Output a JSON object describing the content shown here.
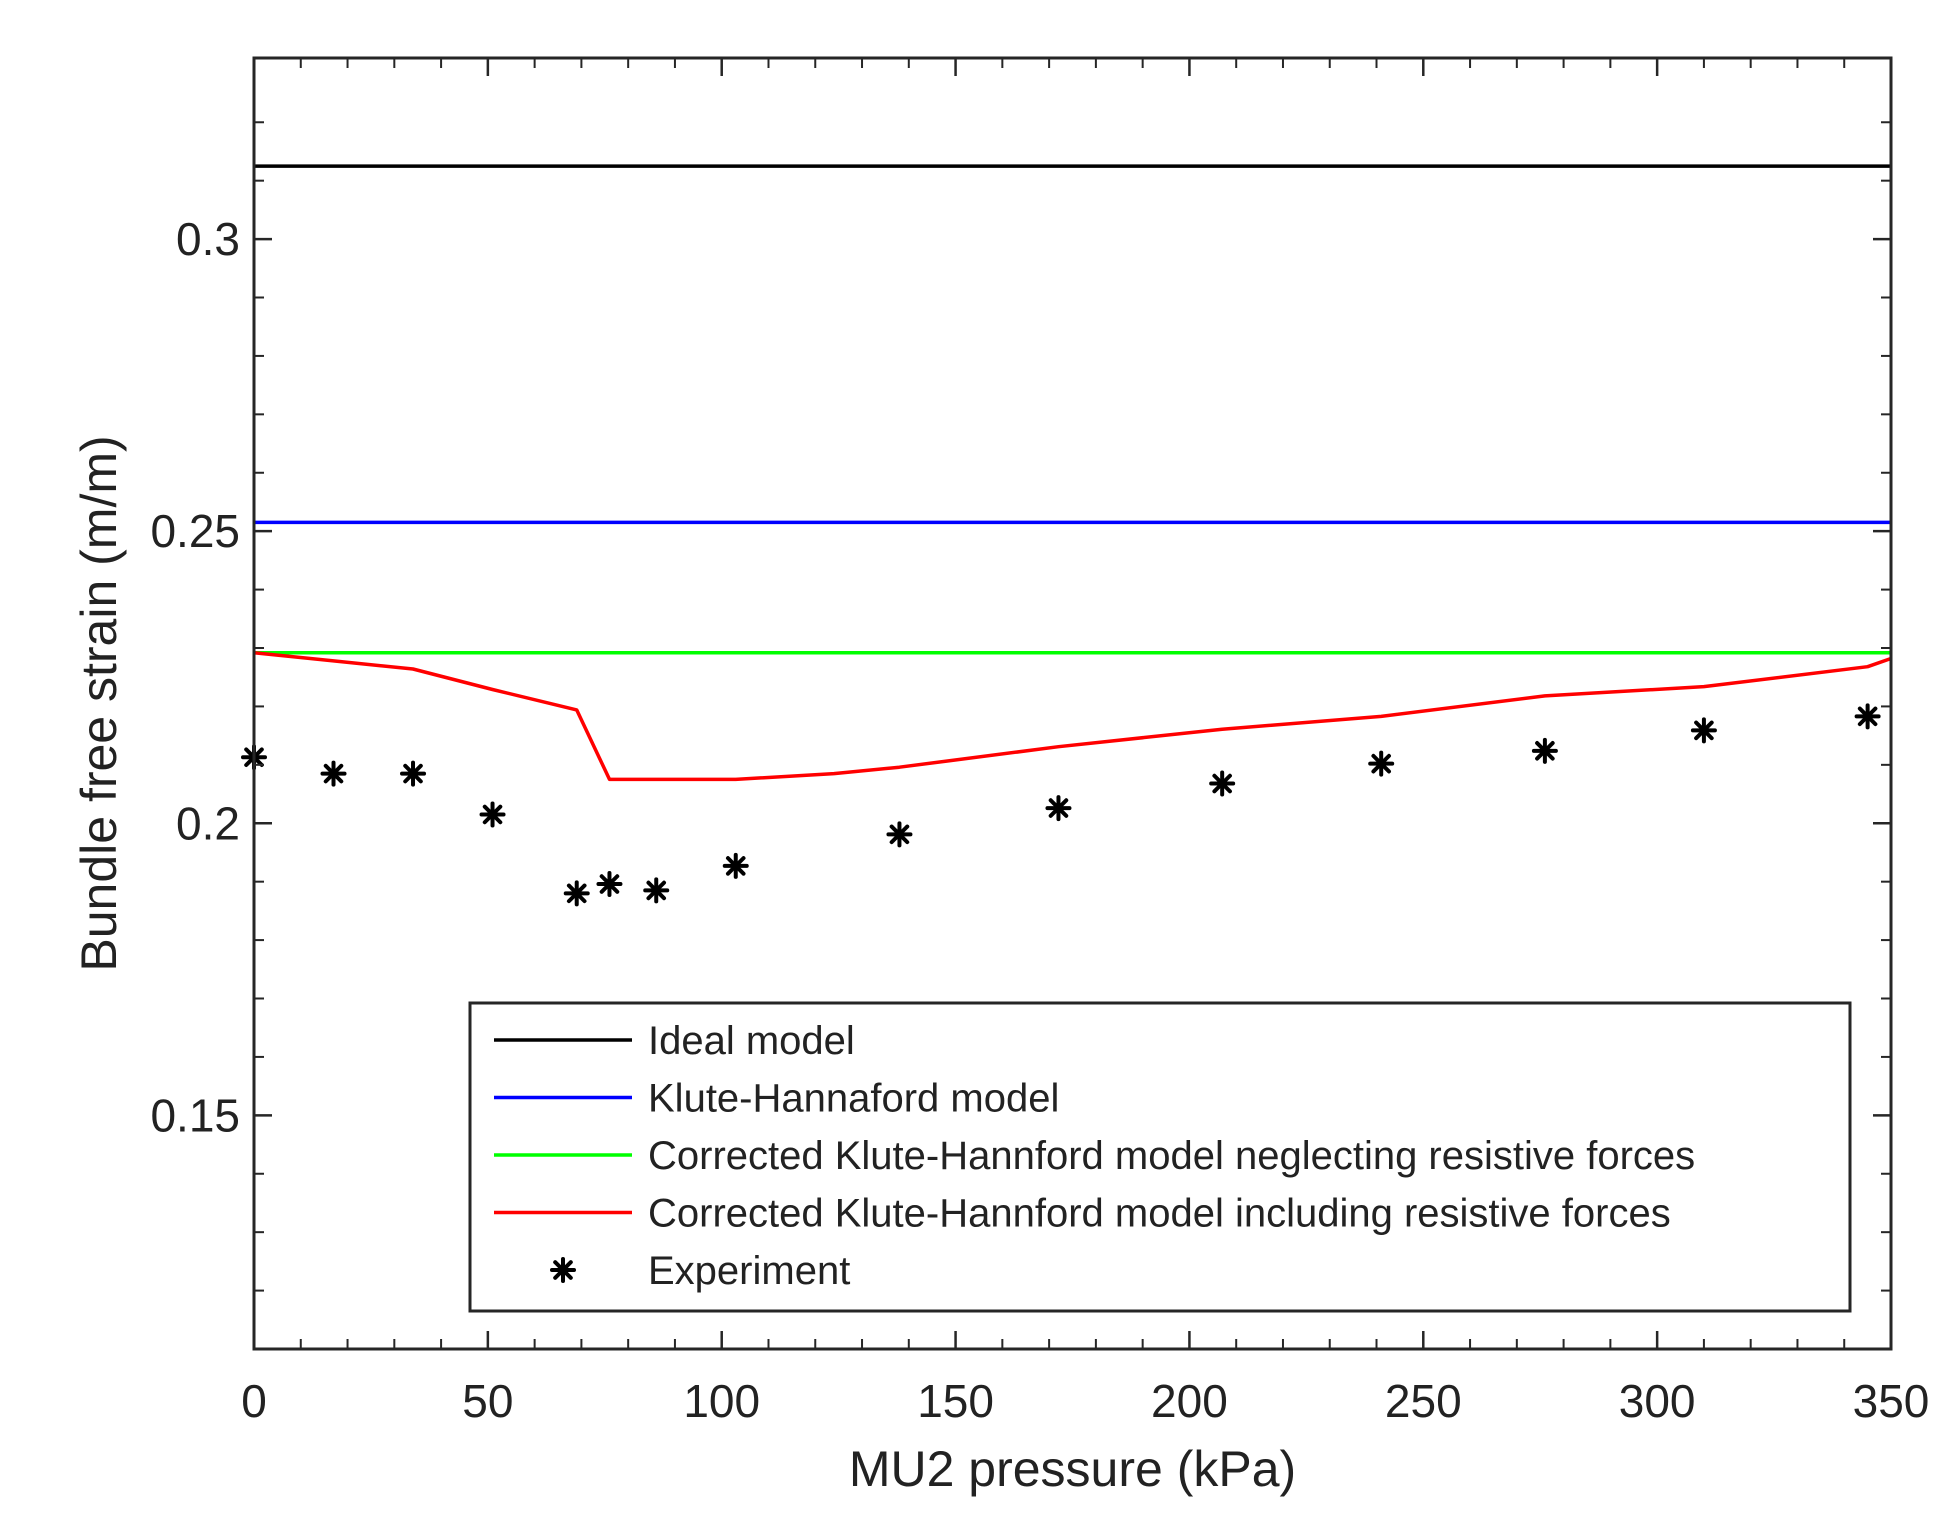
{
  "chart_data": {
    "type": "line",
    "title": "",
    "xlabel": "MU2 pressure (kPa)",
    "ylabel": "Bundle free strain (m/m)",
    "xlim": [
      0,
      350
    ],
    "ylim": [
      0.11,
      0.331
    ],
    "grid": false,
    "legend_position": "bottom-right",
    "x_ticks": [
      0,
      50,
      100,
      150,
      200,
      250,
      300,
      350
    ],
    "x_tick_labels": [
      "0",
      "50",
      "100",
      "150",
      "200",
      "250",
      "300",
      "350"
    ],
    "y_ticks": [
      0.15,
      0.2,
      0.25,
      0.3
    ],
    "y_tick_labels": [
      "0.15",
      "0.2",
      "0.25",
      "0.3"
    ],
    "series": [
      {
        "name": "Ideal model",
        "style": "line",
        "color": "#000000",
        "x": [
          0,
          350
        ],
        "y": [
          0.3125,
          0.3125
        ]
      },
      {
        "name": "Klute-Hannaford model",
        "style": "line",
        "color": "#0000ff",
        "x": [
          0,
          350
        ],
        "y": [
          0.2515,
          0.2515
        ]
      },
      {
        "name": "Corrected Klute-Hannford model neglecting resistive forces",
        "style": "line",
        "color": "#00ff00",
        "x": [
          0,
          350
        ],
        "y": [
          0.2292,
          0.2292
        ]
      },
      {
        "name": "Corrected Klute-Hannford model including resistive forces",
        "style": "line",
        "color": "#ff0000",
        "x": [
          0,
          17,
          34,
          51,
          69,
          76,
          86,
          103,
          124,
          138,
          172,
          207,
          241,
          276,
          310,
          345,
          350
        ],
        "y": [
          0.2292,
          0.2278,
          0.2264,
          0.2229,
          0.2194,
          0.2075,
          0.2075,
          0.2075,
          0.2085,
          0.2096,
          0.2131,
          0.2161,
          0.2183,
          0.2218,
          0.2234,
          0.2268,
          0.2282
        ]
      },
      {
        "name": "Experiment",
        "style": "marker",
        "marker": "asterisk",
        "color": "#000000",
        "x": [
          0,
          17,
          34,
          51,
          69,
          76,
          86,
          103,
          138,
          172,
          207,
          241,
          276,
          310,
          345
        ],
        "y": [
          0.2113,
          0.2085,
          0.2085,
          0.2015,
          0.188,
          0.1896,
          0.1885,
          0.1927,
          0.1981,
          0.2026,
          0.2068,
          0.2102,
          0.2124,
          0.2159,
          0.2183
        ]
      }
    ]
  }
}
